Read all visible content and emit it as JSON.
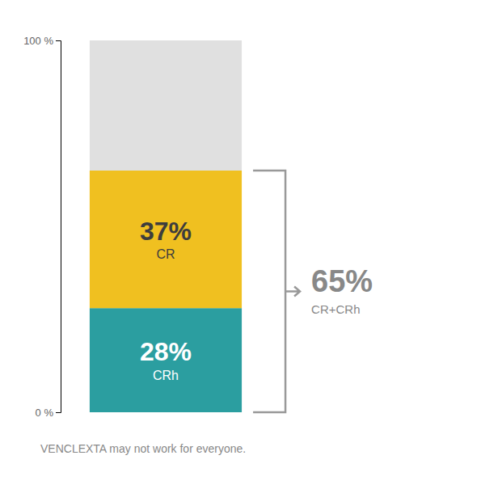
{
  "chart_data": {
    "type": "bar",
    "stacked": true,
    "categories": [
      null
    ],
    "series": [
      {
        "name": "CRh",
        "color": "#2B9EA0",
        "values": [
          28
        ],
        "value_labels": [
          "28%"
        ]
      },
      {
        "name": "CR",
        "color": "#F0C020",
        "values": [
          37
        ],
        "value_labels": [
          "37%"
        ]
      },
      {
        "color": "#E0E0E0",
        "values": [
          35
        ]
      }
    ],
    "data_labels": true,
    "ylim": [
      0,
      100
    ],
    "yticks": [
      {
        "value": 0,
        "label": "0 %"
      },
      {
        "value": 100,
        "label": "100 %"
      }
    ],
    "tick_labels": "y",
    "grid": false,
    "annotations": [
      {
        "text": "65%",
        "subtext": "CR+CRh",
        "range": [
          0,
          65
        ]
      }
    ],
    "footnote": "VENCLEXTA may not work for everyone."
  }
}
